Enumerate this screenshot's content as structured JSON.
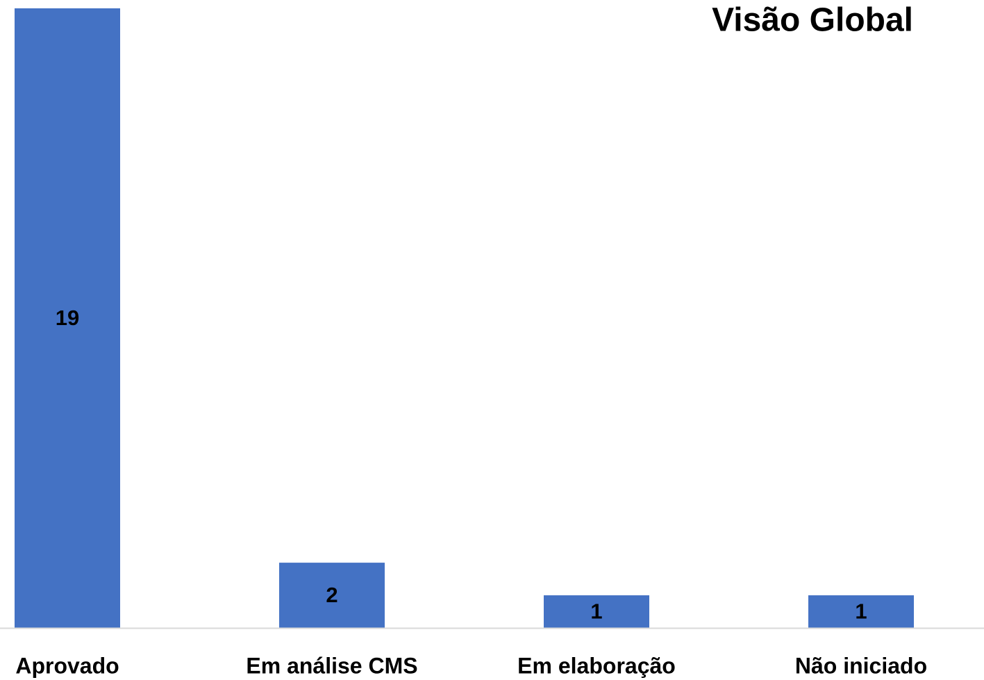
{
  "chart_data": {
    "type": "bar",
    "title": "Visão Global",
    "categories": [
      "Aprovado",
      "Em análise CMS",
      "Em elaboração",
      "Não iniciado"
    ],
    "values": [
      19,
      2,
      1,
      1
    ],
    "color": "#4472c4"
  }
}
